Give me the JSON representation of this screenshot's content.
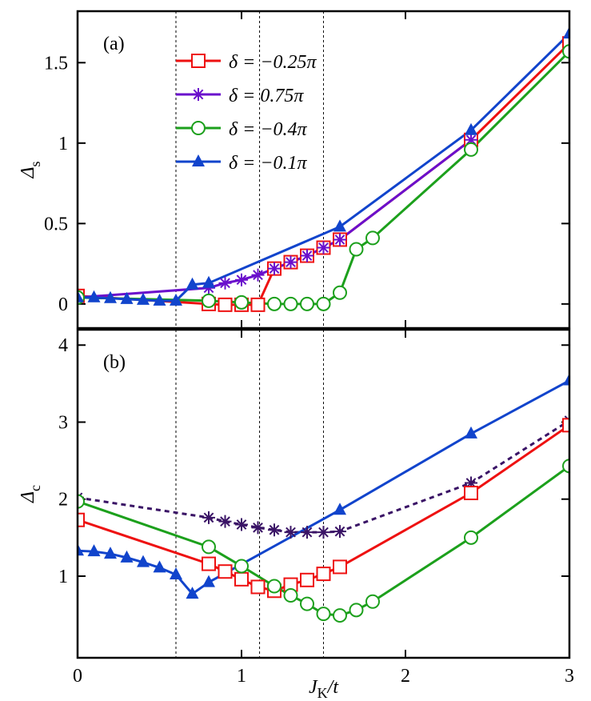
{
  "chart_data": [
    {
      "type": "line",
      "label": "(a)",
      "ylabel": {
        "main": "Δ",
        "sub": "s"
      },
      "xlim": [
        0,
        3
      ],
      "xticks": [
        0,
        1,
        2,
        3
      ],
      "ylim": [
        -0.15,
        1.82
      ],
      "yticks": [
        0,
        0.5,
        1,
        1.5
      ],
      "vlines": [
        0.6,
        1.11,
        1.5
      ],
      "legend": "upper left",
      "series": [
        {
          "name": "δ = −0.25π",
          "color": "#ee1111",
          "marker": "square",
          "linestyle": "solid",
          "x": [
            0,
            0.8,
            0.9,
            1.0,
            1.1,
            1.2,
            1.3,
            1.4,
            1.5,
            1.6,
            2.4,
            3
          ],
          "values": [
            0.05,
            0.0,
            -0.005,
            -0.005,
            -0.005,
            0.22,
            0.26,
            0.3,
            0.35,
            0.4,
            1.02,
            1.62
          ]
        },
        {
          "name": "δ = 0.75π",
          "color": "#6a0fcc",
          "marker": "star",
          "linestyle": "solid",
          "x": [
            0,
            0.8,
            0.9,
            1.0,
            1.1,
            1.2,
            1.3,
            1.4,
            1.5,
            1.6,
            2.4
          ],
          "values": [
            0.04,
            0.1,
            0.13,
            0.15,
            0.18,
            0.22,
            0.26,
            0.3,
            0.35,
            0.4,
            1.02
          ]
        },
        {
          "name": "δ = −0.4π",
          "color": "#1ca01c",
          "marker": "circle",
          "linestyle": "solid",
          "x": [
            0,
            0.8,
            1.0,
            1.2,
            1.3,
            1.4,
            1.5,
            1.6,
            1.7,
            1.8,
            2.4,
            3
          ],
          "values": [
            0.04,
            0.02,
            0.01,
            0.0,
            0.0,
            0.0,
            0.0,
            0.07,
            0.34,
            0.41,
            0.96,
            1.57
          ]
        },
        {
          "name": "δ = −0.1π",
          "color": "#1144cc",
          "marker": "triangle",
          "linestyle": "solid",
          "x": [
            0,
            0.1,
            0.2,
            0.3,
            0.4,
            0.5,
            0.6,
            0.7,
            0.8,
            1.6,
            2.4,
            3
          ],
          "values": [
            0.04,
            0.04,
            0.035,
            0.03,
            0.025,
            0.02,
            0.02,
            0.12,
            0.13,
            0.48,
            1.08,
            1.68
          ]
        }
      ]
    },
    {
      "type": "line",
      "label": "(b)",
      "ylabel": {
        "main": "Δ",
        "sub": "c"
      },
      "xlabel": {
        "main": "J",
        "sub": "K",
        "rest": "/t"
      },
      "xlim": [
        0,
        3
      ],
      "xticks": [
        0,
        1,
        2,
        3
      ],
      "ylim": [
        -0.06,
        4.2
      ],
      "yticks": [
        1,
        2,
        3,
        4
      ],
      "vlines": [
        0.6,
        1.11,
        1.5
      ],
      "series": [
        {
          "color": "#3a1466",
          "marker": "star",
          "linestyle": "dashed",
          "x": [
            0,
            0.8,
            0.9,
            1.0,
            1.1,
            1.2,
            1.3,
            1.4,
            1.5,
            1.6,
            2.4,
            3
          ],
          "values": [
            2.02,
            1.76,
            1.71,
            1.67,
            1.63,
            1.6,
            1.57,
            1.57,
            1.57,
            1.58,
            2.21,
            3.02
          ]
        },
        {
          "color": "#ee1111",
          "marker": "square",
          "linestyle": "solid",
          "x": [
            0,
            0.8,
            0.9,
            1.0,
            1.1,
            1.2,
            1.3,
            1.4,
            1.5,
            1.6,
            2.4,
            3
          ],
          "values": [
            1.73,
            1.16,
            1.06,
            0.96,
            0.86,
            0.81,
            0.89,
            0.95,
            1.03,
            1.12,
            2.08,
            2.96
          ]
        },
        {
          "color": "#1ca01c",
          "marker": "circle",
          "linestyle": "solid",
          "x": [
            0,
            0.8,
            1.0,
            1.2,
            1.3,
            1.4,
            1.5,
            1.6,
            1.7,
            1.8,
            2.4,
            3
          ],
          "values": [
            1.97,
            1.38,
            1.13,
            0.87,
            0.75,
            0.64,
            0.51,
            0.49,
            0.56,
            0.67,
            1.5,
            2.43
          ]
        },
        {
          "color": "#1144cc",
          "marker": "triangle",
          "linestyle": "solid",
          "x": [
            0,
            0.1,
            0.2,
            0.3,
            0.4,
            0.5,
            0.6,
            0.7,
            0.8,
            1.6,
            2.4,
            3
          ],
          "values": [
            1.33,
            1.32,
            1.29,
            1.24,
            1.18,
            1.11,
            1.02,
            0.77,
            0.92,
            1.86,
            2.85,
            3.54
          ]
        }
      ]
    }
  ]
}
